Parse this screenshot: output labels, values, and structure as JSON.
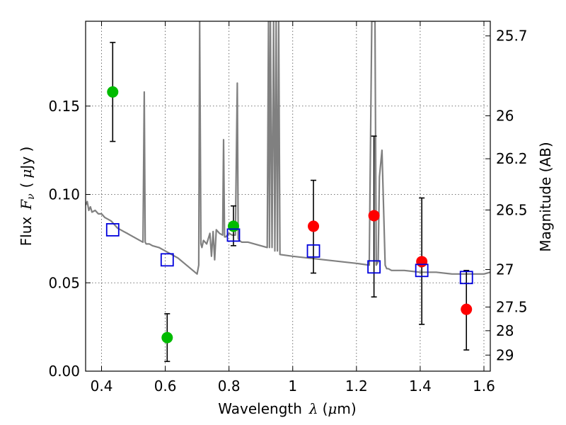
{
  "chart_data": {
    "type": "scatter",
    "title": "",
    "xlabel_text": "Wavelength",
    "xlabel_symbol": "λ",
    "xlabel_unit_pre": "(",
    "xlabel_unit_mu": "μ",
    "xlabel_unit_post": "m)",
    "ylabel_text": "Flux",
    "ylabel_symbol": "F",
    "ylabel_subscript": "ν",
    "ylabel_unit_pre": "(",
    "ylabel_unit_mu": "μ",
    "ylabel_unit_post": "Jy )",
    "y2label": "Magnitude (AB)",
    "xlim": [
      0.35,
      1.62
    ],
    "ylim": [
      0.0,
      0.198
    ],
    "grid": true,
    "x_ticks": [
      {
        "value": 0.4,
        "label": "0.4"
      },
      {
        "value": 0.6,
        "label": "0.6"
      },
      {
        "value": 0.8,
        "label": "0.8"
      },
      {
        "value": 1.0,
        "label": "1"
      },
      {
        "value": 1.2,
        "label": "1.2"
      },
      {
        "value": 1.4,
        "label": "1.4"
      },
      {
        "value": 1.6,
        "label": "1.6"
      }
    ],
    "y_ticks": [
      {
        "value": 0.0,
        "label": "0.00"
      },
      {
        "value": 0.05,
        "label": "0.05"
      },
      {
        "value": 0.1,
        "label": "0.10"
      },
      {
        "value": 0.15,
        "label": "0.15"
      }
    ],
    "y2_ticks": [
      {
        "flux": 0.1897,
        "label": "25.7"
      },
      {
        "flux": 0.1445,
        "label": "26"
      },
      {
        "flux": 0.1202,
        "label": "26.2"
      },
      {
        "flux": 0.0912,
        "label": "26.5"
      },
      {
        "flux": 0.0575,
        "label": "27"
      },
      {
        "flux": 0.0363,
        "label": "27.5"
      },
      {
        "flux": 0.0229,
        "label": "28"
      },
      {
        "flux": 0.0091,
        "label": "29"
      }
    ],
    "series": [
      {
        "marker": "circle",
        "color": "#00bb00",
        "points": [
          {
            "x": 0.435,
            "y": 0.158,
            "ylow": 0.13,
            "yhigh": 0.186
          },
          {
            "x": 0.606,
            "y": 0.019,
            "ylow": 0.0055,
            "yhigh": 0.0325
          },
          {
            "x": 0.814,
            "y": 0.082,
            "ylow": 0.071,
            "yhigh": 0.0935
          }
        ]
      },
      {
        "marker": "circle",
        "color": "#ff0000",
        "points": [
          {
            "x": 1.065,
            "y": 0.082,
            "ylow": 0.0555,
            "yhigh": 0.108
          },
          {
            "x": 1.255,
            "y": 0.088,
            "ylow": 0.042,
            "yhigh": 0.133
          },
          {
            "x": 1.405,
            "y": 0.062,
            "ylow": 0.0265,
            "yhigh": 0.098
          },
          {
            "x": 1.545,
            "y": 0.035,
            "ylow": 0.012,
            "yhigh": 0.057
          }
        ]
      },
      {
        "marker": "open-square",
        "color": "#0000dd",
        "points": [
          {
            "x": 0.435,
            "y": 0.08
          },
          {
            "x": 0.606,
            "y": 0.063
          },
          {
            "x": 0.814,
            "y": 0.077
          },
          {
            "x": 1.065,
            "y": 0.068
          },
          {
            "x": 1.255,
            "y": 0.059
          },
          {
            "x": 1.405,
            "y": 0.057
          },
          {
            "x": 1.545,
            "y": 0.053
          }
        ]
      }
    ],
    "spectrum": {
      "color": "#808080",
      "x": [
        0.35,
        0.355,
        0.36,
        0.365,
        0.37,
        0.38,
        0.39,
        0.4,
        0.41,
        0.42,
        0.43,
        0.44,
        0.45,
        0.46,
        0.47,
        0.48,
        0.49,
        0.5,
        0.51,
        0.52,
        0.53,
        0.534,
        0.537,
        0.54,
        0.55,
        0.56,
        0.58,
        0.6,
        0.62,
        0.64,
        0.66,
        0.68,
        0.7,
        0.705,
        0.708,
        0.712,
        0.715,
        0.72,
        0.73,
        0.74,
        0.745,
        0.75,
        0.755,
        0.76,
        0.77,
        0.78,
        0.783,
        0.786,
        0.79,
        0.8,
        0.81,
        0.82,
        0.826,
        0.829,
        0.832,
        0.84,
        0.86,
        0.88,
        0.9,
        0.92,
        0.924,
        0.927,
        0.93,
        0.935,
        0.94,
        0.944,
        0.948,
        0.952,
        0.956,
        0.96,
        1.0,
        1.05,
        1.1,
        1.15,
        1.2,
        1.24,
        1.248,
        1.252,
        1.258,
        1.262,
        1.268,
        1.272,
        1.28,
        1.29,
        1.295,
        1.3,
        1.31,
        1.35,
        1.4,
        1.45,
        1.5,
        1.55,
        1.6,
        1.62
      ],
      "y": [
        0.094,
        0.096,
        0.091,
        0.093,
        0.09,
        0.091,
        0.089,
        0.089,
        0.087,
        0.086,
        0.085,
        0.083,
        0.081,
        0.08,
        0.079,
        0.078,
        0.077,
        0.076,
        0.075,
        0.074,
        0.073,
        0.158,
        0.073,
        0.072,
        0.072,
        0.071,
        0.07,
        0.068,
        0.066,
        0.064,
        0.061,
        0.058,
        0.055,
        0.06,
        0.198,
        0.072,
        0.07,
        0.074,
        0.072,
        0.078,
        0.065,
        0.079,
        0.063,
        0.08,
        0.078,
        0.077,
        0.131,
        0.076,
        0.076,
        0.078,
        0.077,
        0.077,
        0.163,
        0.075,
        0.074,
        0.073,
        0.073,
        0.072,
        0.071,
        0.07,
        0.198,
        0.07,
        0.198,
        0.07,
        0.198,
        0.068,
        0.198,
        0.068,
        0.198,
        0.066,
        0.065,
        0.064,
        0.063,
        0.062,
        0.061,
        0.06,
        0.198,
        0.198,
        0.198,
        0.06,
        0.062,
        0.11,
        0.125,
        0.06,
        0.058,
        0.058,
        0.057,
        0.057,
        0.056,
        0.056,
        0.055,
        0.055,
        0.055,
        0.056
      ]
    }
  }
}
